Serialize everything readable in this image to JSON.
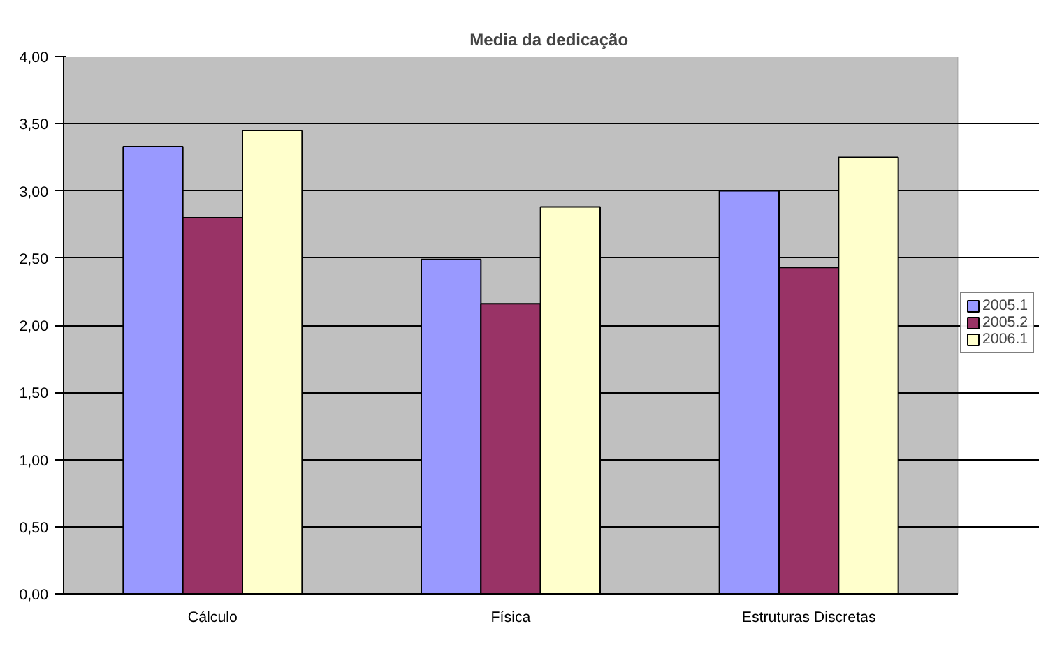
{
  "chart_data": {
    "type": "bar",
    "title": "Media  da dedicação",
    "categories": [
      "Cálculo",
      "Física",
      "Estruturas Discretas"
    ],
    "series": [
      {
        "name": "2005.1",
        "color": "#9999ff",
        "values": [
          3.33,
          2.49,
          3.0
        ]
      },
      {
        "name": "2005.2",
        "color": "#993366",
        "values": [
          2.8,
          2.16,
          2.43
        ]
      },
      {
        "name": "2006.1",
        "color": "#ffffcc",
        "values": [
          3.45,
          2.88,
          3.25
        ]
      }
    ],
    "ylim": [
      0,
      4
    ],
    "yticks": [
      {
        "value": 0,
        "label": "0,00"
      },
      {
        "value": 0.5,
        "label": "0,50"
      },
      {
        "value": 1,
        "label": "1,00"
      },
      {
        "value": 1.5,
        "label": "1,50"
      },
      {
        "value": 2,
        "label": "2,00"
      },
      {
        "value": 2.5,
        "label": "2,50"
      },
      {
        "value": 3,
        "label": "3,00"
      },
      {
        "value": 3.5,
        "label": "3,50"
      },
      {
        "value": 4,
        "label": "4,00"
      }
    ],
    "grid": "y",
    "legend": "right"
  }
}
